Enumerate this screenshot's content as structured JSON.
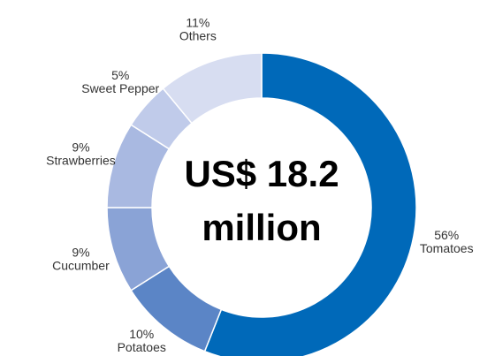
{
  "chart_data": {
    "type": "pie",
    "donut": true,
    "center_label": [
      "US$ 18.2",
      "million"
    ],
    "categories": [
      "Tomatoes",
      "Potatoes",
      "Cucumber",
      "Strawberries",
      "Sweet Pepper",
      "Others"
    ],
    "values": [
      56,
      10,
      9,
      9,
      5,
      11
    ],
    "value_labels": [
      "56%",
      "10%",
      "9%",
      "9%",
      "5%",
      "11%"
    ],
    "colors": [
      "#0069b9",
      "#5b85c6",
      "#8aa3d6",
      "#a9b9e1",
      "#c0cbea",
      "#d7ddf1"
    ],
    "legend": "none"
  }
}
